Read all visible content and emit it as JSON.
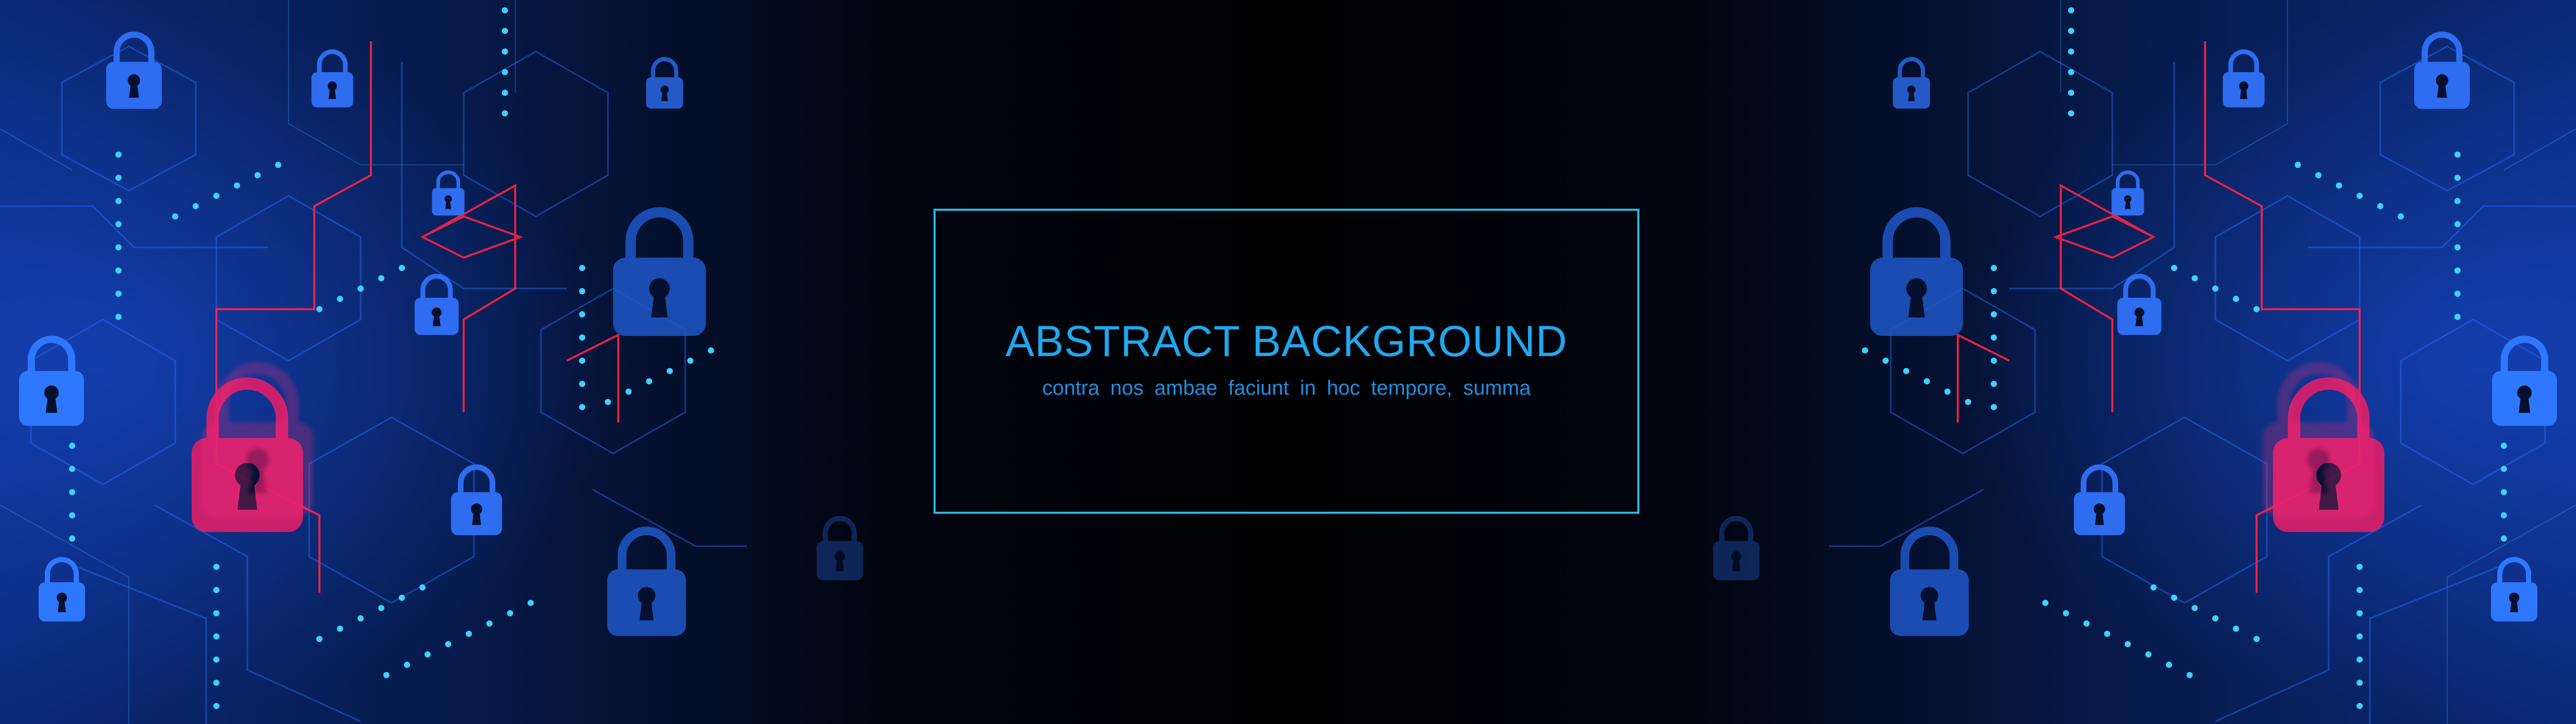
{
  "banner": {
    "title": "ABSTRACT BACKGROUND",
    "subtitle": "contra  nos  ambae  faciunt  in hoc  tempore, summa"
  },
  "colors": {
    "background": "#000000",
    "blue_glow": "#1976ff",
    "cyan_accent": "#2ab8e8",
    "red_accent": "#ff2244",
    "lock_blue": "#1f4fb8",
    "lock_pink": "#e0206a"
  },
  "decor": {
    "left_lock_icon": "padlock-icon",
    "right_lock_icon": "padlock-icon",
    "circuit_pattern": "hexagon-circuit-lines",
    "dotted_lines": "glowing-dot-trails"
  }
}
